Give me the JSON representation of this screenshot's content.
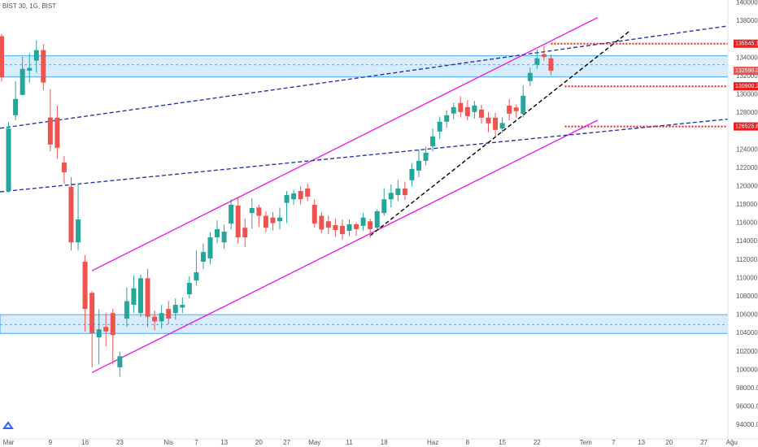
{
  "chart_data": {
    "type": "candlestick",
    "title": "BIST 30, 1G, BIST",
    "up_color": "#26a69a",
    "down_color": "#ef5350",
    "grid": false,
    "categories": [
      null,
      "Mar",
      null,
      null,
      null,
      null,
      null,
      "9",
      null,
      null,
      null,
      null,
      "16",
      null,
      null,
      null,
      null,
      "23",
      null,
      null,
      null,
      null,
      null,
      null,
      "Nis",
      null,
      null,
      null,
      "7",
      null,
      null,
      null,
      "13",
      null,
      null,
      null,
      null,
      "20",
      null,
      null,
      null,
      "27",
      null,
      null,
      null,
      "May",
      null,
      null,
      null,
      null,
      "11",
      null,
      null,
      null,
      null,
      "18",
      null,
      null,
      null,
      null,
      null,
      null,
      "Haz",
      null,
      null,
      null,
      null,
      "8",
      null,
      null,
      null,
      null,
      "15",
      null,
      null,
      null,
      null,
      "22",
      null,
      null,
      null,
      null,
      null,
      null,
      "Tem",
      null,
      null,
      null,
      "7",
      null,
      null,
      null,
      "13",
      null,
      null,
      null,
      "20",
      null,
      null,
      null,
      null,
      "27",
      null,
      null,
      null,
      "Ağu"
    ],
    "open": [
      136350,
      119500,
      127750,
      129960,
      132600,
      133700,
      134840,
      127500,
      127480,
      122600,
      119950,
      113900,
      111790,
      108400,
      103550,
      104700,
      106200,
      100300,
      105600,
      107100,
      106200,
      110000,
      105800,
      105300,
      106650,
      106200,
      106800,
      108250,
      109750,
      111800,
      112150,
      114450,
      113900,
      115960,
      117900,
      115500,
      117100,
      117700,
      116800,
      116600,
      116200,
      118200,
      118600,
      119500,
      119770,
      118000,
      116800,
      116200,
      115780,
      115700,
      115160,
      115870,
      115700,
      116200,
      115500,
      117100,
      118600,
      119060,
      119770,
      120660,
      121720,
      122780,
      124380,
      125970,
      127040,
      127930,
      129080,
      128630,
      128100,
      128370,
      127480,
      127480,
      126300,
      128800,
      128600,
      127920,
      131470,
      133240,
      134400,
      133950,
      null,
      null,
      null,
      null,
      null,
      null,
      null,
      null,
      null,
      null,
      null,
      null,
      null,
      null,
      null,
      null,
      null,
      null,
      null,
      null,
      null,
      null,
      null,
      null,
      null,
      null
    ],
    "high": [
      136600,
      127000,
      131470,
      134130,
      134500,
      135900,
      135500,
      130600,
      128800,
      123300,
      121000,
      120300,
      112500,
      108600,
      106600,
      106200,
      106700,
      102000,
      109000,
      110300,
      110400,
      111000,
      106500,
      107100,
      107500,
      107800,
      107900,
      110200,
      113000,
      113800,
      115000,
      116300,
      115800,
      118600,
      118900,
      116500,
      118700,
      118000,
      117300,
      117200,
      117700,
      119500,
      119600,
      120000,
      120300,
      118600,
      117200,
      116800,
      116500,
      116400,
      116400,
      116100,
      117100,
      116500,
      117500,
      119800,
      120200,
      120700,
      120500,
      122500,
      124000,
      124300,
      126300,
      127600,
      128300,
      129100,
      129800,
      129400,
      129300,
      128900,
      128100,
      128000,
      127500,
      129500,
      128900,
      131000,
      132900,
      134900,
      135300,
      134400,
      null,
      null,
      null,
      null,
      null,
      null,
      null,
      null,
      null,
      null,
      null,
      null,
      null,
      null,
      null,
      null,
      null,
      null,
      null,
      null,
      null,
      null,
      null,
      null,
      null,
      null
    ],
    "low": [
      131400,
      119300,
      127220,
      130400,
      131300,
      132400,
      130500,
      123800,
      123000,
      120300,
      113000,
      113000,
      104200,
      100300,
      100600,
      102600,
      100600,
      99300,
      104700,
      106200,
      105800,
      104700,
      104300,
      104500,
      105000,
      105500,
      106200,
      107800,
      109200,
      111000,
      111500,
      113800,
      113200,
      115300,
      113800,
      113400,
      115400,
      115600,
      115000,
      115200,
      115300,
      116000,
      118000,
      118000,
      118400,
      115500,
      114900,
      114800,
      114500,
      114200,
      114600,
      114600,
      115200,
      114400,
      115200,
      116800,
      117700,
      118400,
      118500,
      120000,
      121000,
      122300,
      123800,
      125200,
      126400,
      127300,
      127500,
      127200,
      127400,
      126800,
      125900,
      125400,
      125800,
      127200,
      127500,
      127500,
      130900,
      132800,
      133700,
      132100,
      null,
      null,
      null,
      null,
      null,
      null,
      null,
      null,
      null,
      null,
      null,
      null,
      null,
      null,
      null,
      null,
      null,
      null,
      null,
      null,
      null,
      null,
      null,
      null,
      null,
      null
    ],
    "close": [
      131900,
      126300,
      129520,
      132800,
      132900,
      134840,
      131300,
      124560,
      124200,
      121540,
      113900,
      116400,
      106650,
      103990,
      104430,
      104200,
      103800,
      101500,
      107500,
      108900,
      110000,
      105800,
      105300,
      106200,
      105600,
      107100,
      107100,
      109490,
      110640,
      112850,
      114450,
      115340,
      115070,
      118000,
      114450,
      114450,
      117640,
      116800,
      115500,
      116000,
      116600,
      119060,
      119240,
      118600,
      118880,
      115960,
      115300,
      115500,
      115250,
      114800,
      115870,
      115340,
      116600,
      115340,
      117300,
      118600,
      119300,
      119770,
      119060,
      121900,
      122780,
      123670,
      125440,
      127040,
      127750,
      128630,
      128100,
      127660,
      128810,
      127480,
      126860,
      126150,
      126900,
      127920,
      128200,
      129870,
      132360,
      133950,
      134100,
      132590,
      null,
      null,
      null,
      null,
      null,
      null,
      null,
      null,
      null,
      null,
      null,
      null,
      null,
      null,
      null,
      null,
      null,
      null,
      null,
      null,
      null,
      null,
      null,
      null,
      null,
      null
    ],
    "ylim": [
      92500,
      140300
    ],
    "yticks": [
      {
        "value": 94000,
        "label": "94000.00"
      },
      {
        "value": 96000,
        "label": "96000.00"
      },
      {
        "value": 98000,
        "label": "98000.00"
      },
      {
        "value": 100000,
        "label": "100000.00"
      },
      {
        "value": 102000,
        "label": "102000.00"
      },
      {
        "value": 104000,
        "label": "104000.00"
      },
      {
        "value": 106000,
        "label": "106000.00"
      },
      {
        "value": 108000,
        "label": "108000.00"
      },
      {
        "value": 110000,
        "label": "110000.00"
      },
      {
        "value": 112000,
        "label": "112000.00"
      },
      {
        "value": 114000,
        "label": "114000.00"
      },
      {
        "value": 116000,
        "label": "116000.00"
      },
      {
        "value": 118000,
        "label": "118000.00"
      },
      {
        "value": 120000,
        "label": "120000.00"
      },
      {
        "value": 122000,
        "label": "122000.00"
      },
      {
        "value": 124000,
        "label": "124000.00"
      },
      {
        "value": 128000,
        "label": "128000.00"
      },
      {
        "value": 130000,
        "label": "130000.00"
      },
      {
        "value": 132000,
        "label": "132000.00"
      },
      {
        "value": 134000,
        "label": "134000.00"
      },
      {
        "value": 138000,
        "label": "138000.00"
      },
      {
        "value": 140000,
        "label": "140000.00"
      }
    ],
    "zones": [
      {
        "top": 134220,
        "bottom": 131910,
        "mid": 133240
      },
      {
        "top": 106030,
        "bottom": 103990,
        "mid": 104960
      }
    ],
    "trendlines": [
      {
        "color": "#e91ee9",
        "style": "solid",
        "from": {
          "x": 13,
          "y": 110815
        },
        "to": {
          "x": 85.7,
          "y": 138385
        }
      },
      {
        "color": "#e91ee9",
        "style": "solid",
        "from": {
          "x": 13,
          "y": 99730
        },
        "to": {
          "x": 85.7,
          "y": 127215
        }
      },
      {
        "color": "#2636a8",
        "style": "dashed",
        "from": {
          "x": -0.23,
          "y": 126330
        },
        "to": {
          "x": 108.8,
          "y": 137940
        }
      },
      {
        "color": "#2636a8",
        "style": "dashed",
        "from": {
          "x": -0.23,
          "y": 119410
        },
        "to": {
          "x": 108.8,
          "y": 127660
        }
      },
      {
        "color": "#000000",
        "style": "dashed",
        "from": {
          "x": 53,
          "y": 114630
        },
        "to": {
          "x": 90.4,
          "y": 136970
        }
      }
    ],
    "price_lines": [
      {
        "value": 135545.1,
        "label": "135545.10",
        "start": 79,
        "color": "#f01a1a"
      },
      {
        "value": 130900.22,
        "label": "130900.22",
        "start": 81,
        "color": "#f01a1a"
      },
      {
        "value": 126525.8,
        "label": "126525.80",
        "start": 81,
        "color": "#f01a1a"
      }
    ],
    "last_price": {
      "value": 132590,
      "label": "132590.00",
      "color": "#ef5350"
    }
  }
}
